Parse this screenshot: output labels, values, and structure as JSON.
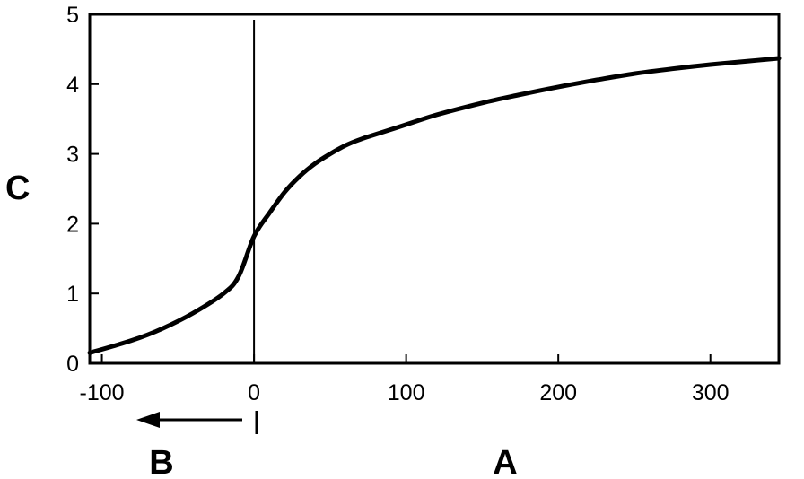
{
  "chart_data": {
    "type": "line",
    "xlabel": "A",
    "ylabel": "C",
    "direction_label": "B",
    "xlim": [
      -108,
      345
    ],
    "ylim": [
      0,
      5
    ],
    "x_ticks": [
      -100,
      0,
      100,
      200,
      300
    ],
    "x_tick_labels": [
      "-100",
      "0",
      "100",
      "200",
      "300"
    ],
    "y_ticks": [
      0,
      1,
      2,
      3,
      4,
      5
    ],
    "y_tick_labels": [
      "0",
      "1",
      "2",
      "3",
      "4",
      "5"
    ],
    "vertical_reference_x": 0,
    "grid": false,
    "series": [
      {
        "x": [
          -108,
          -80,
          -60,
          -40,
          -20,
          -10,
          0,
          10,
          20,
          30,
          40,
          50,
          60,
          70,
          80,
          100,
          120,
          150,
          175,
          200,
          225,
          250,
          275,
          300,
          325,
          345
        ],
        "y": [
          0.15,
          0.33,
          0.5,
          0.72,
          1.0,
          1.25,
          1.82,
          2.15,
          2.45,
          2.68,
          2.86,
          3.0,
          3.12,
          3.21,
          3.28,
          3.42,
          3.56,
          3.73,
          3.85,
          3.96,
          4.06,
          4.15,
          4.22,
          4.28,
          4.33,
          4.37
        ]
      }
    ]
  }
}
